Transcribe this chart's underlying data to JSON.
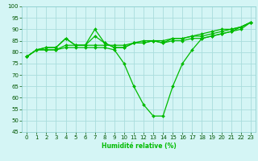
{
  "xlabel": "Humidité relative (%)",
  "ylabel": "",
  "bg_color": "#d4f5f5",
  "grid_color": "#aadddd",
  "line_color": "#00bb00",
  "xlim": [
    -0.5,
    23.5
  ],
  "ylim": [
    45,
    100
  ],
  "yticks": [
    45,
    50,
    55,
    60,
    65,
    70,
    75,
    80,
    85,
    90,
    95,
    100
  ],
  "xticks": [
    0,
    1,
    2,
    3,
    4,
    5,
    6,
    7,
    8,
    9,
    10,
    11,
    12,
    13,
    14,
    15,
    16,
    17,
    18,
    19,
    20,
    21,
    22,
    23
  ],
  "series": [
    [
      78,
      81,
      82,
      82,
      86,
      83,
      83,
      90,
      84,
      82,
      82,
      84,
      85,
      85,
      85,
      86,
      86,
      87,
      88,
      89,
      90,
      90,
      91,
      93
    ],
    [
      78,
      81,
      82,
      82,
      86,
      83,
      83,
      87,
      84,
      82,
      82,
      84,
      84,
      85,
      84,
      86,
      86,
      87,
      87,
      88,
      89,
      90,
      91,
      93
    ],
    [
      78,
      81,
      81,
      81,
      83,
      83,
      83,
      83,
      83,
      83,
      83,
      84,
      84,
      85,
      84,
      85,
      85,
      86,
      86,
      87,
      88,
      89,
      90,
      93
    ],
    [
      78,
      81,
      81,
      81,
      82,
      82,
      82,
      82,
      82,
      81,
      75,
      65,
      57,
      52,
      52,
      65,
      75,
      81,
      86,
      87,
      88,
      89,
      91,
      93
    ]
  ]
}
